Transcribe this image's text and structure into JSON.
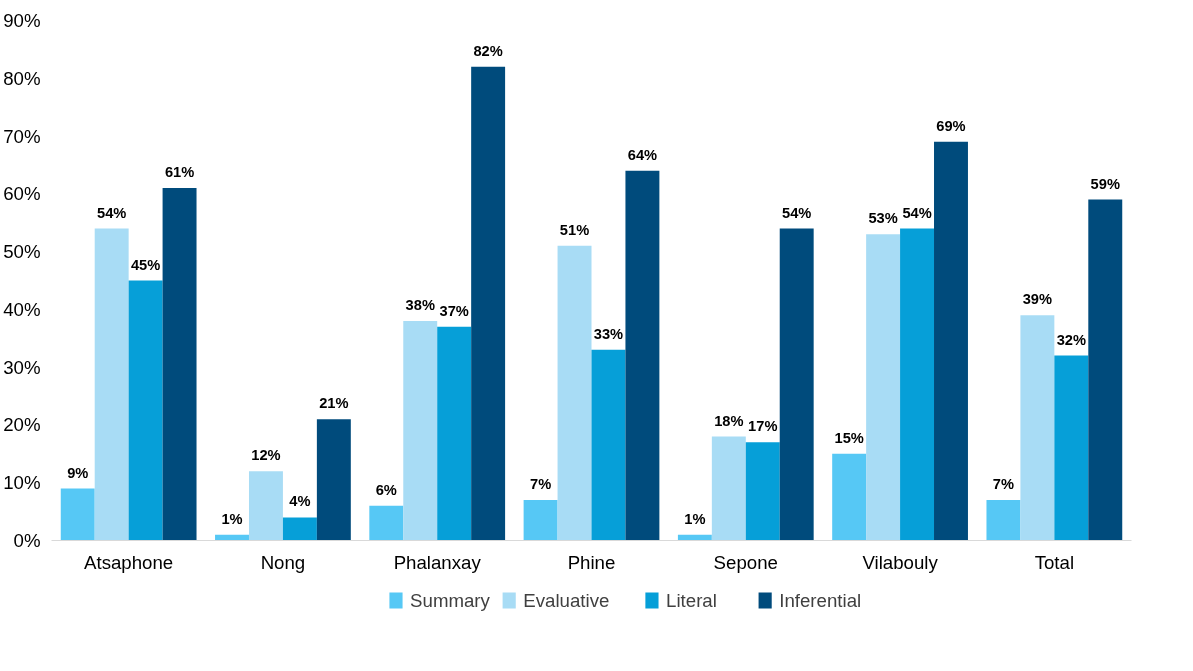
{
  "chart_data": {
    "type": "bar",
    "categories": [
      "Atsaphone",
      "Nong",
      "Phalanxay",
      "Phine",
      "Sepone",
      "Vilabouly",
      "Total"
    ],
    "series": [
      {
        "name": "Summary",
        "color": "#56c8f5",
        "values": [
          9,
          1,
          6,
          7,
          1,
          15,
          7
        ],
        "value_labels": [
          "9%",
          "1%",
          "6%",
          "7%",
          "1%",
          "15%",
          "7%"
        ]
      },
      {
        "name": "Evaluative",
        "color": "#a8dcf5",
        "values": [
          54,
          12,
          38,
          51,
          18,
          53,
          39
        ],
        "value_labels": [
          "54%",
          "12%",
          "38%",
          "51%",
          "18%",
          "53%",
          "39%"
        ]
      },
      {
        "name": "Literal",
        "color": "#069fd8",
        "values": [
          45,
          4,
          37,
          33,
          17,
          54,
          32
        ],
        "value_labels": [
          "45%",
          "4%",
          "37%",
          "33%",
          "17%",
          "54%",
          "32%"
        ]
      },
      {
        "name": "Inferential",
        "color": "#004b7c",
        "values": [
          61,
          21,
          82,
          64,
          54,
          69,
          59
        ],
        "value_labels": [
          "61%",
          "21%",
          "82%",
          "64%",
          "54%",
          "69%",
          "59%"
        ]
      }
    ],
    "ylim": [
      0,
      90
    ],
    "yticks": [
      {
        "value": 0,
        "label": "0%"
      },
      {
        "value": 10,
        "label": "10%"
      },
      {
        "value": 20,
        "label": "20%"
      },
      {
        "value": 30,
        "label": "30%"
      },
      {
        "value": 40,
        "label": "40%"
      },
      {
        "value": 50,
        "label": "50%"
      },
      {
        "value": 60,
        "label": "60%"
      },
      {
        "value": 70,
        "label": "70%"
      },
      {
        "value": 80,
        "label": "80%"
      },
      {
        "value": 90,
        "label": "90%"
      }
    ],
    "grid": false,
    "legend": "bottom"
  }
}
